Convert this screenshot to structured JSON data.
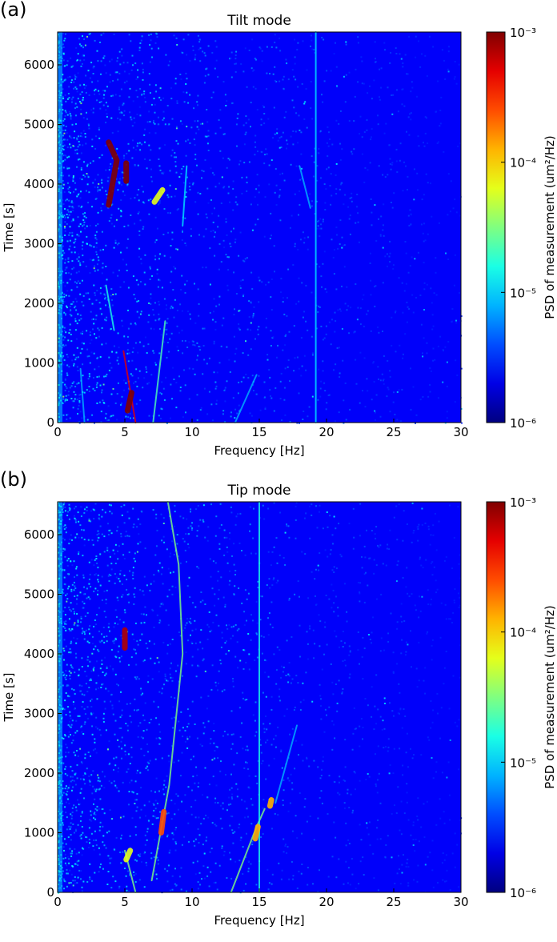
{
  "chart_data": [
    {
      "panel_label": "(a)",
      "title": "Tilt mode",
      "type": "heatmap",
      "xlabel": "Frequency [Hz]",
      "ylabel": "Time [s]",
      "xlim": [
        0,
        30
      ],
      "ylim": [
        0,
        6550
      ],
      "xticks": [
        0,
        5,
        10,
        15,
        20,
        25,
        30
      ],
      "yticks": [
        0,
        1000,
        2000,
        3000,
        4000,
        5000,
        6000
      ],
      "colorbar": {
        "label": "PSD of measurement (um²/Hz)",
        "scale": "log",
        "range": [
          1e-06,
          0.001
        ],
        "ticks": [
          "10⁻⁶",
          "10⁻⁵",
          "10⁻⁴",
          "10⁻³"
        ],
        "colormap": "jet"
      },
      "background_level": 1e-06,
      "features": [
        {
          "kind": "line",
          "points": [
            [
              5.8,
              0
            ],
            [
              4.9,
              1200
            ]
          ],
          "level": 0.9
        },
        {
          "kind": "line",
          "points": [
            [
              3.6,
              2300
            ],
            [
              4.2,
              1550
            ]
          ],
          "level": 0.4
        },
        {
          "kind": "line",
          "points": [
            [
              2.0,
              0
            ],
            [
              1.7,
              900
            ]
          ],
          "level": 0.3
        },
        {
          "kind": "line",
          "points": [
            [
              7.1,
              0
            ],
            [
              8.0,
              1700
            ]
          ],
          "level": 0.45
        },
        {
          "kind": "line",
          "points": [
            [
              13.2,
              0
            ],
            [
              14.8,
              800
            ]
          ],
          "level": 0.3
        },
        {
          "kind": "line",
          "points": [
            [
              19.2,
              0
            ],
            [
              19.2,
              6550
            ]
          ],
          "level": 0.35
        },
        {
          "kind": "line",
          "points": [
            [
              18.8,
              3600
            ],
            [
              18.0,
              4300
            ]
          ],
          "level": 0.3
        },
        {
          "kind": "line",
          "points": [
            [
              9.3,
              3300
            ],
            [
              9.6,
              4300
            ]
          ],
          "level": 0.35
        },
        {
          "kind": "blob",
          "points": [
            [
              3.8,
              3650
            ],
            [
              4.4,
              4400
            ],
            [
              3.8,
              4700
            ]
          ],
          "level": 1.0
        },
        {
          "kind": "blob",
          "points": [
            [
              5.1,
              4050
            ],
            [
              5.1,
              4350
            ]
          ],
          "level": 1.0
        },
        {
          "kind": "blob",
          "points": [
            [
              7.2,
              3700
            ],
            [
              7.8,
              3900
            ]
          ],
          "level": 0.6
        },
        {
          "kind": "blob",
          "points": [
            [
              5.2,
              200
            ],
            [
              5.5,
              500
            ]
          ],
          "level": 1.0
        }
      ]
    },
    {
      "panel_label": "(b)",
      "title": "Tip mode",
      "type": "heatmap",
      "xlabel": "Frequency [Hz]",
      "ylabel": "Time [s]",
      "xlim": [
        0,
        30
      ],
      "ylim": [
        0,
        6550
      ],
      "xticks": [
        0,
        5,
        10,
        15,
        20,
        25,
        30
      ],
      "yticks": [
        0,
        1000,
        2000,
        3000,
        4000,
        5000,
        6000
      ],
      "colorbar": {
        "label": "PSD of measurement (um²/Hz)",
        "scale": "log",
        "range": [
          1e-06,
          0.001
        ],
        "ticks": [
          "10⁻⁶",
          "10⁻⁵",
          "10⁻⁴",
          "10⁻³"
        ],
        "colormap": "jet"
      },
      "background_level": 1e-06,
      "features": [
        {
          "kind": "line",
          "points": [
            [
              5.8,
              0
            ],
            [
              5.0,
              700
            ]
          ],
          "level": 0.5
        },
        {
          "kind": "line",
          "points": [
            [
              7.0,
              200
            ],
            [
              8.3,
              1800
            ],
            [
              9.3,
              4000
            ],
            [
              9.0,
              5500
            ],
            [
              8.2,
              6550
            ]
          ],
          "level": 0.5
        },
        {
          "kind": "line",
          "points": [
            [
              12.9,
              0
            ],
            [
              14.8,
              1100
            ],
            [
              15.4,
              1400
            ]
          ],
          "level": 0.5
        },
        {
          "kind": "line",
          "points": [
            [
              15.0,
              0
            ],
            [
              15.0,
              6550
            ]
          ],
          "level": 0.4
        },
        {
          "kind": "line",
          "points": [
            [
              16.2,
              1500
            ],
            [
              17.8,
              2800
            ]
          ],
          "level": 0.3
        },
        {
          "kind": "blob",
          "points": [
            [
              5.0,
              4100
            ],
            [
              5.0,
              4400
            ]
          ],
          "level": 0.95
        },
        {
          "kind": "blob",
          "points": [
            [
              7.7,
              1000
            ],
            [
              7.9,
              1350
            ]
          ],
          "level": 0.8
        },
        {
          "kind": "blob",
          "points": [
            [
              14.7,
              900
            ],
            [
              14.9,
              1100
            ]
          ],
          "level": 0.7
        },
        {
          "kind": "blob",
          "points": [
            [
              15.8,
              1450
            ],
            [
              15.9,
              1550
            ]
          ],
          "level": 0.7
        },
        {
          "kind": "blob",
          "points": [
            [
              5.1,
              550
            ],
            [
              5.4,
              700
            ]
          ],
          "level": 0.6
        }
      ]
    }
  ]
}
